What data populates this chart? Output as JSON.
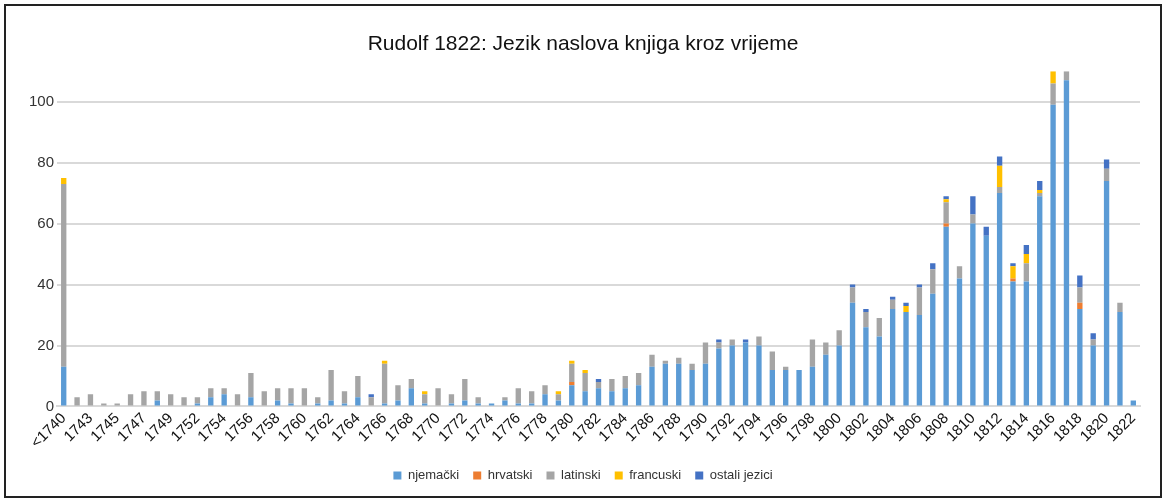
{
  "chart_data": {
    "type": "bar",
    "title": "Rudolf 1822: Jezik naslova knjiga kroz vrijeme",
    "stacked": true,
    "grid": "y",
    "legend": "bottom",
    "ylim": [
      0,
      110
    ],
    "yticks": [
      0,
      20,
      40,
      60,
      80,
      100
    ],
    "categories": [
      "<1740",
      null,
      "1743",
      null,
      "1745",
      null,
      "1747",
      null,
      "1749",
      null,
      "1752",
      null,
      "1754",
      null,
      "1756",
      null,
      "1758",
      null,
      "1760",
      null,
      "1762",
      null,
      "1764",
      null,
      "1766",
      null,
      "1768",
      null,
      "1770",
      null,
      "1772",
      null,
      "1774",
      null,
      "1776",
      null,
      "1778",
      null,
      "1780",
      null,
      "1782",
      null,
      "1784",
      null,
      "1786",
      null,
      "1788",
      null,
      "1790",
      null,
      "1792",
      null,
      "1794",
      null,
      "1796",
      null,
      "1798",
      null,
      "1800",
      null,
      "1802",
      null,
      "1804",
      null,
      "1806",
      null,
      "1808",
      null,
      "1810",
      null,
      "1812",
      null,
      "1814",
      null,
      "1816",
      null,
      "1818",
      null,
      "1820",
      null,
      "1822"
    ],
    "series": [
      {
        "name": "njemački",
        "color": "#5b9bd5",
        "values": [
          13,
          0,
          0,
          0,
          0,
          0,
          0,
          2,
          0,
          0,
          1,
          3,
          4,
          0,
          3,
          0,
          2,
          1,
          0,
          1,
          2,
          1,
          3,
          0,
          1,
          2,
          6,
          1,
          0,
          1,
          2,
          1,
          1,
          2,
          1,
          1,
          4,
          2,
          7,
          5,
          6,
          5,
          6,
          7,
          13,
          14,
          14,
          12,
          14,
          19,
          20,
          21,
          20,
          12,
          12,
          12,
          13,
          17,
          20,
          34,
          26,
          23,
          32,
          31,
          30,
          37,
          59,
          42,
          60,
          56,
          70,
          41,
          41,
          69,
          99,
          107,
          32,
          20,
          74,
          31,
          2
        ]
      },
      {
        "name": "hrvatski",
        "color": "#ed7d31",
        "values": [
          0,
          0,
          0,
          0,
          0,
          0,
          0,
          0,
          0,
          0,
          0,
          0,
          0,
          0,
          0,
          0,
          0,
          0,
          0,
          0,
          0,
          0,
          0,
          0,
          0,
          0,
          0,
          0,
          0,
          0,
          0,
          0,
          0,
          0,
          0,
          0,
          0,
          0,
          1,
          0,
          0,
          0,
          0,
          0,
          0,
          0,
          0,
          0,
          0,
          0,
          0,
          0,
          0,
          0,
          0,
          0,
          0,
          0,
          0,
          0,
          0,
          0,
          0,
          0,
          0,
          0,
          1,
          0,
          0,
          0,
          0,
          1,
          0,
          0,
          0,
          0,
          2,
          0,
          0,
          0,
          0
        ]
      },
      {
        "name": "latinski",
        "color": "#a5a5a5",
        "values": [
          60,
          3,
          4,
          1,
          1,
          4,
          5,
          3,
          4,
          3,
          2,
          3,
          2,
          4,
          8,
          5,
          4,
          5,
          6,
          2,
          10,
          4,
          7,
          3,
          13,
          5,
          3,
          3,
          6,
          3,
          7,
          2,
          0,
          1,
          5,
          4,
          3,
          2,
          6,
          6,
          2,
          4,
          4,
          4,
          4,
          1,
          2,
          2,
          7,
          2,
          2,
          0,
          3,
          6,
          1,
          0,
          9,
          4,
          5,
          5,
          5,
          6,
          3,
          0,
          9,
          8,
          7,
          4,
          3,
          0,
          2,
          0,
          6,
          1,
          7,
          3,
          5,
          2,
          4,
          3,
          0
        ]
      },
      {
        "name": "francuski",
        "color": "#ffc000",
        "values": [
          2,
          0,
          0,
          0,
          0,
          0,
          0,
          0,
          0,
          0,
          0,
          0,
          0,
          0,
          0,
          0,
          0,
          0,
          0,
          0,
          0,
          0,
          0,
          0,
          1,
          0,
          0,
          1,
          0,
          0,
          0,
          0,
          0,
          0,
          0,
          0,
          0,
          1,
          1,
          1,
          0,
          0,
          0,
          0,
          0,
          0,
          0,
          0,
          0,
          0,
          0,
          0,
          0,
          0,
          0,
          0,
          0,
          0,
          0,
          0,
          0,
          0,
          0,
          2,
          0,
          0,
          1,
          0,
          0,
          0,
          7,
          4,
          3,
          1,
          4,
          0,
          0,
          0,
          0,
          0,
          0
        ]
      },
      {
        "name": "ostali jezici",
        "color": "#4472c4",
        "values": [
          0,
          0,
          0,
          0,
          0,
          0,
          0,
          0,
          0,
          0,
          0,
          0,
          0,
          0,
          0,
          0,
          0,
          0,
          0,
          0,
          0,
          0,
          0,
          1,
          0,
          0,
          0,
          0,
          0,
          0,
          0,
          0,
          0,
          0,
          0,
          0,
          0,
          0,
          0,
          0,
          1,
          0,
          0,
          0,
          0,
          0,
          0,
          0,
          0,
          1,
          0,
          1,
          0,
          0,
          0,
          0,
          0,
          0,
          0,
          1,
          1,
          0,
          1,
          1,
          1,
          2,
          1,
          0,
          6,
          3,
          3,
          1,
          3,
          3,
          0,
          0,
          4,
          2,
          3,
          0,
          0
        ]
      }
    ]
  }
}
